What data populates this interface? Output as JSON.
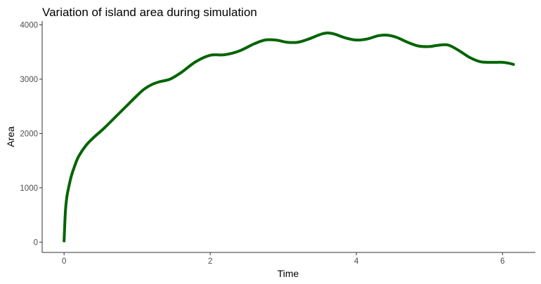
{
  "chart_data": {
    "type": "line",
    "title": "Variation of island area during simulation",
    "xlabel": "Time",
    "ylabel": "Area",
    "xlim": [
      -0.3,
      6.45
    ],
    "ylim": [
      -190,
      4070
    ],
    "xticks": [
      0,
      2,
      4,
      6
    ],
    "xtick_labels": [
      "0",
      "2",
      "4",
      "6"
    ],
    "yticks": [
      0,
      1000,
      2000,
      3000,
      4000
    ],
    "ytick_labels": [
      "0",
      "1000",
      "2000",
      "3000",
      "4000"
    ],
    "grid": false,
    "legend": "none",
    "colors": {
      "line": "#006400",
      "axis": "#333333",
      "tick_text": "#4d4d4d"
    },
    "series": [
      {
        "x": [
          0.0,
          0.01,
          0.02,
          0.04,
          0.07,
          0.1,
          0.15,
          0.2,
          0.3,
          0.4,
          0.55,
          0.7,
          0.85,
          1.0,
          1.1,
          1.2,
          1.3,
          1.45,
          1.6,
          1.8,
          2.0,
          2.2,
          2.4,
          2.6,
          2.75,
          2.9,
          3.05,
          3.2,
          3.35,
          3.5,
          3.6,
          3.7,
          3.85,
          4.0,
          4.15,
          4.3,
          4.42,
          4.55,
          4.7,
          4.85,
          5.0,
          5.1,
          5.25,
          5.4,
          5.55,
          5.7,
          5.85,
          6.0,
          6.1,
          6.15
        ],
        "y": [
          20,
          350,
          600,
          850,
          1050,
          1220,
          1420,
          1580,
          1780,
          1920,
          2100,
          2300,
          2500,
          2700,
          2820,
          2900,
          2950,
          3000,
          3120,
          3320,
          3440,
          3450,
          3520,
          3650,
          3720,
          3720,
          3680,
          3680,
          3740,
          3820,
          3850,
          3830,
          3760,
          3720,
          3740,
          3800,
          3810,
          3770,
          3680,
          3610,
          3600,
          3620,
          3630,
          3530,
          3400,
          3320,
          3310,
          3310,
          3290,
          3270
        ]
      }
    ]
  }
}
